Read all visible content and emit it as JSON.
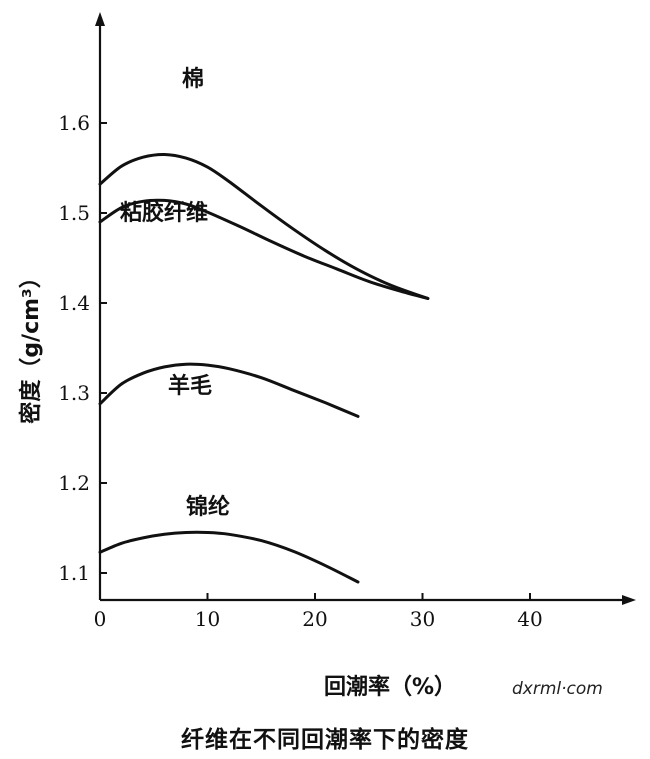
{
  "caption": "纤维在不同回潮率下的密度",
  "watermark": "dxrml·com",
  "chart_data": {
    "type": "line",
    "xlabel": "回潮率（%）",
    "ylabel": "密度（g/cm³）",
    "xlim": [
      0,
      50
    ],
    "ylim": [
      1.075,
      1.65
    ],
    "x_ticks": [
      0,
      10,
      20,
      30,
      40
    ],
    "x_tick_labels": [
      "0",
      "10",
      "20",
      "30",
      "40"
    ],
    "y_ticks": [
      1.1,
      1.2,
      1.3,
      1.4,
      1.5,
      1.6
    ],
    "y_tick_labels": [
      "1.1",
      "1.2",
      "1.3",
      "1.4",
      "1.5",
      "1.6"
    ],
    "grid": false,
    "series": [
      {
        "name": "棉",
        "x": [
          0,
          2,
          4,
          6,
          8,
          10,
          12,
          15,
          18,
          21,
          24,
          27,
          30.5
        ],
        "y": [
          1.532,
          1.552,
          1.562,
          1.565,
          1.561,
          1.551,
          1.535,
          1.508,
          1.482,
          1.458,
          1.437,
          1.42,
          1.405
        ]
      },
      {
        "name": "粘胶纤维",
        "x": [
          0,
          2,
          4,
          6,
          8,
          10,
          13,
          16,
          19,
          22,
          25,
          28,
          30.5
        ],
        "y": [
          1.49,
          1.506,
          1.513,
          1.514,
          1.51,
          1.501,
          1.485,
          1.468,
          1.452,
          1.438,
          1.424,
          1.413,
          1.405
        ]
      },
      {
        "name": "羊毛",
        "x": [
          0,
          2,
          4,
          6,
          8,
          10,
          12,
          15,
          18,
          21,
          24
        ],
        "y": [
          1.288,
          1.31,
          1.322,
          1.329,
          1.332,
          1.331,
          1.327,
          1.317,
          1.303,
          1.289,
          1.274
        ]
      },
      {
        "name": "锦纶",
        "x": [
          0,
          2,
          4,
          6,
          8,
          10,
          12,
          15,
          18,
          21,
          24
        ],
        "y": [
          1.123,
          1.133,
          1.139,
          1.143,
          1.145,
          1.145,
          1.143,
          1.136,
          1.124,
          1.108,
          1.09
        ]
      }
    ]
  }
}
